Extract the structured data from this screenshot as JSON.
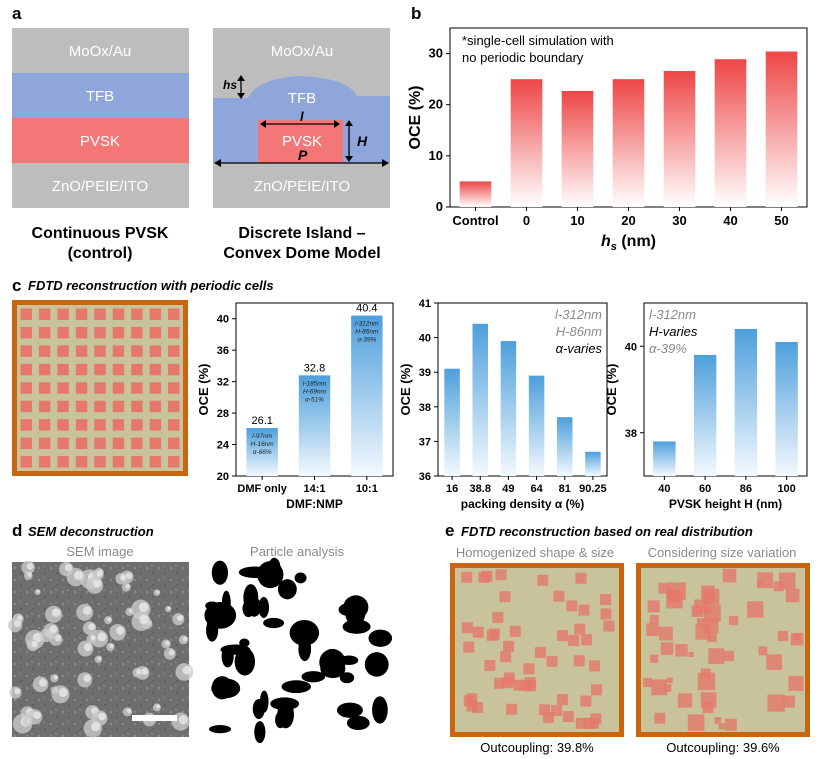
{
  "panels": {
    "a": {
      "letter": "a",
      "left": {
        "layers": [
          "MoOx/Au",
          "TFB",
          "PVSK",
          "ZnO/PEIE/ITO"
        ],
        "caption_line1": "Continuous PVSK",
        "caption_line2": "(control)"
      },
      "right": {
        "layers": [
          "MoOx/Au",
          "TFB",
          "PVSK",
          "ZnO/PEIE/ITO"
        ],
        "labels": {
          "hs": "hs",
          "l": "l",
          "H": "H",
          "P": "P"
        },
        "caption_line1": "Discrete Island –",
        "caption_line2": "Convex Dome Model"
      },
      "colors": {
        "metal": "#bdbdbd",
        "tfb": "#8ea6dc",
        "pvsk": "#f47777",
        "zno": "#bdbdbd"
      }
    },
    "b": {
      "letter": "b",
      "note_line1": "*single-cell simulation with",
      "note_line2": "no periodic boundary"
    },
    "c": {
      "letter": "c",
      "heading": "FDTD reconstruction with periodic cells"
    },
    "d": {
      "letter": "d",
      "heading": "SEM deconstruction",
      "left_title": "SEM image",
      "right_title": "Particle analysis"
    },
    "e": {
      "letter": "e",
      "heading": "FDTD reconstruction based on real distribution",
      "left_title": "Homogenized shape & size",
      "right_title": "Considering size variation",
      "left_caption": "Outcoupling: 39.8%",
      "right_caption": "Outcoupling: 39.6%"
    }
  },
  "colors": {
    "red_bar": "#ee4646",
    "blue_bar": "#4d9fdc",
    "frame": "#c9650f",
    "film": "#c8c39a",
    "island": "#e5786b"
  },
  "chart_data": [
    {
      "id": "b",
      "type": "bar",
      "categories": [
        "Control",
        "0",
        "10",
        "20",
        "30",
        "40",
        "50"
      ],
      "values": [
        5.0,
        25.0,
        22.7,
        25.0,
        26.6,
        28.9,
        30.4
      ],
      "xlabel": "hs (nm)",
      "ylabel": "OCE (%)",
      "ylim": [
        0,
        35
      ],
      "yticks": [
        "0",
        "10",
        "20",
        "30"
      ],
      "grid": false
    },
    {
      "id": "c1",
      "type": "bar",
      "categories": [
        "DMF only",
        "14:1",
        "10:1"
      ],
      "values": [
        26.1,
        32.8,
        40.4
      ],
      "data_labels": [
        "26.1",
        "32.8",
        "40.4"
      ],
      "annotations": [
        [
          "l-97nm",
          "H-16nm",
          "α-66%"
        ],
        [
          "l-185nm",
          "H-69nm",
          "α-51%"
        ],
        [
          "l-312nm",
          "H-86nm",
          "α-39%"
        ]
      ],
      "xlabel": "DMF:NMP",
      "ylabel": "OCE (%)",
      "ylim": [
        20,
        42
      ],
      "yticks": [
        "20",
        "24",
        "28",
        "32",
        "36",
        "40"
      ]
    },
    {
      "id": "c2",
      "type": "bar",
      "categories": [
        "16",
        "38.8",
        "49",
        "64",
        "81",
        "90.25"
      ],
      "values": [
        39.1,
        40.4,
        39.9,
        38.9,
        37.7,
        36.7
      ],
      "xlabel": "packing density α (%)",
      "ylabel": "OCE (%)",
      "ylim": [
        36,
        41
      ],
      "yticks": [
        "36",
        "37",
        "38",
        "39",
        "40",
        "41"
      ],
      "legend": [
        "l-312nm",
        "H-86nm",
        "α-varies"
      ]
    },
    {
      "id": "c3",
      "type": "bar",
      "categories": [
        "40",
        "60",
        "86",
        "100"
      ],
      "values": [
        37.8,
        39.8,
        40.4,
        40.1
      ],
      "xlabel": "PVSK height H (nm)",
      "ylabel": "OCE (%)",
      "ylim": [
        37,
        41
      ],
      "yticks": [
        "38",
        "40"
      ],
      "legend": [
        "l-312nm",
        "H-varies",
        "α-39%"
      ]
    }
  ]
}
